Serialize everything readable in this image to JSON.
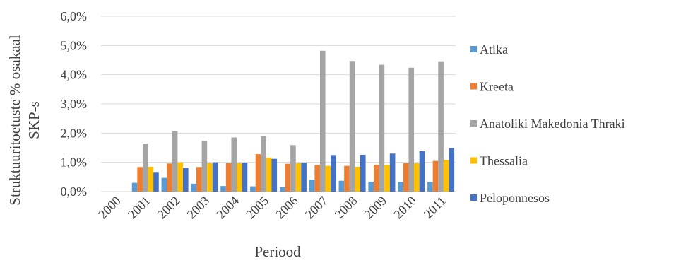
{
  "chart_data": {
    "type": "bar",
    "title": "",
    "xlabel": "Periood",
    "ylabel": "Struktuuritoetuste % osakaal SKP-s",
    "ylabel_lines": [
      "Struktuuritoetuste % osakaal",
      "SKP-s"
    ],
    "ylim": [
      0,
      6
    ],
    "yticks": [
      "0,0%",
      "1,0%",
      "2,0%",
      "3,0%",
      "4,0%",
      "5,0%",
      "6,0%"
    ],
    "grid": true,
    "legend_position": "right",
    "categories": [
      "2000",
      "2001",
      "2002",
      "2003",
      "2004",
      "2005",
      "2006",
      "2007",
      "2008",
      "2009",
      "2010",
      "2011"
    ],
    "series": [
      {
        "name": "Atika",
        "color": "#5B9BD5",
        "values": [
          0,
          0.3,
          0.47,
          0.27,
          0.19,
          0.18,
          0.15,
          0.41,
          0.37,
          0.34,
          0.33,
          0.33
        ]
      },
      {
        "name": "Kreeta",
        "color": "#ED7D31",
        "values": [
          0,
          0.84,
          0.96,
          0.84,
          0.97,
          1.28,
          0.95,
          0.91,
          0.88,
          0.92,
          0.97,
          1.05
        ]
      },
      {
        "name": "Anatoliki Makedonia Thraki",
        "color": "#A5A5A5",
        "values": [
          0,
          1.64,
          2.06,
          1.74,
          1.85,
          1.9,
          1.59,
          4.82,
          4.47,
          4.34,
          4.24,
          4.46
        ]
      },
      {
        "name": "Thessalia",
        "color": "#FFC000",
        "values": [
          0,
          0.85,
          1.0,
          0.97,
          0.97,
          1.16,
          0.97,
          0.88,
          0.85,
          0.91,
          0.97,
          1.08
        ]
      },
      {
        "name": "Peloponnesos",
        "color": "#4472C4",
        "values": [
          0,
          0.67,
          0.81,
          1.0,
          0.99,
          1.12,
          0.98,
          1.25,
          1.26,
          1.3,
          1.38,
          1.49
        ]
      }
    ]
  }
}
